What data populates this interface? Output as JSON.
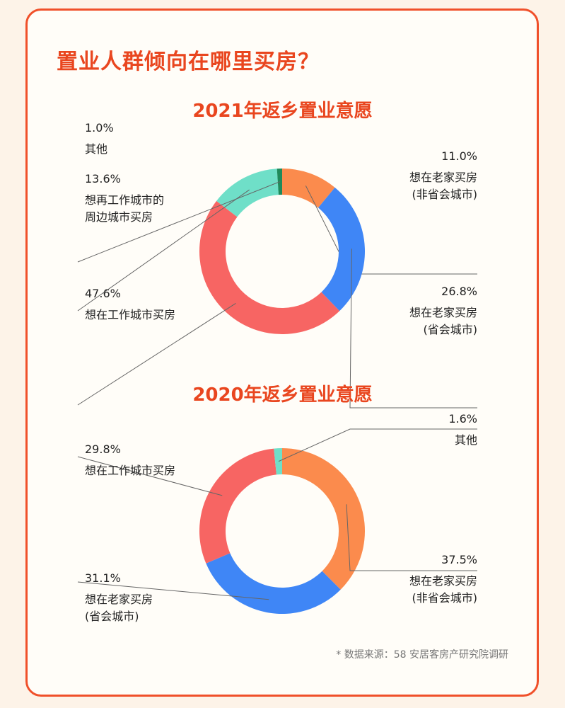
{
  "title": "置业人群倾向在哪里买房？",
  "source": "* 数据来源：58 安居客房产研究院调研",
  "colors": {
    "orange": "#fb8b4d",
    "blue": "#3f86f6",
    "red": "#f76563",
    "teal": "#6fdfc8",
    "green": "#1f8a5b",
    "accent": "#e9461f"
  },
  "chart_data": [
    {
      "type": "pie",
      "style": "donut",
      "title": "2021年返乡置业意愿",
      "slices": [
        {
          "label_lines": [
            "想在老家买房",
            "(非省会城市)"
          ],
          "value": 11.0,
          "display": "11.0%",
          "color": "#fb8b4d"
        },
        {
          "label_lines": [
            "想在老家买房",
            "(省会城市)"
          ],
          "value": 26.8,
          "display": "26.8%",
          "color": "#3f86f6"
        },
        {
          "label_lines": [
            "想在工作城市买房"
          ],
          "value": 47.6,
          "display": "47.6%",
          "color": "#f76563"
        },
        {
          "label_lines": [
            "想再工作城市的",
            "周边城市买房"
          ],
          "value": 13.6,
          "display": "13.6%",
          "color": "#6fdfc8"
        },
        {
          "label_lines": [
            "其他"
          ],
          "value": 1.0,
          "display": "1.0%",
          "color": "#1f8a5b"
        }
      ]
    },
    {
      "type": "pie",
      "style": "donut",
      "title": "2020年返乡置业意愿",
      "slices": [
        {
          "label_lines": [
            "想在老家买房",
            "(非省会城市)"
          ],
          "value": 37.5,
          "display": "37.5%",
          "color": "#fb8b4d"
        },
        {
          "label_lines": [
            "想在老家买房",
            "(省会城市)"
          ],
          "value": 31.1,
          "display": "31.1%",
          "color": "#3f86f6"
        },
        {
          "label_lines": [
            "想在工作城市买房"
          ],
          "value": 29.8,
          "display": "29.8%",
          "color": "#f76563"
        },
        {
          "label_lines": [
            "其他"
          ],
          "value": 1.6,
          "display": "1.6%",
          "color": "#6fdfc8"
        }
      ]
    }
  ]
}
